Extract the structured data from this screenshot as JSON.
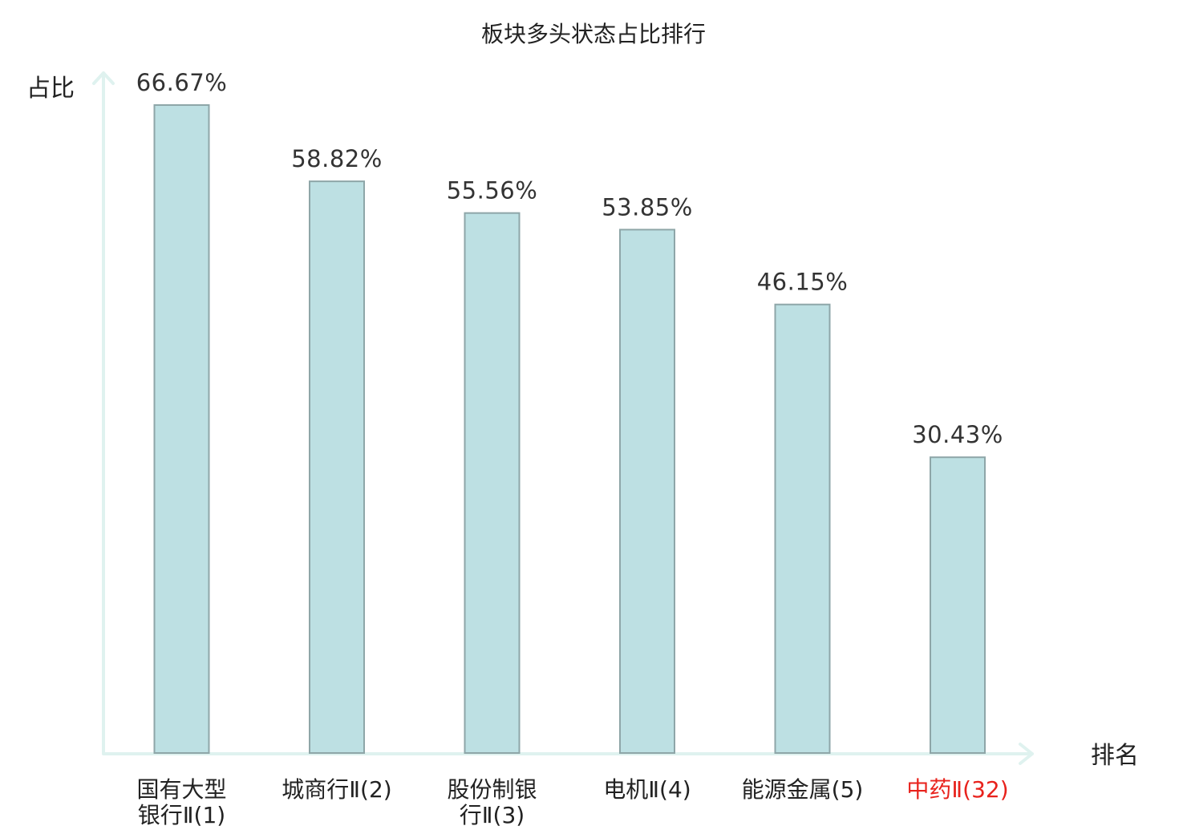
{
  "chart_data": {
    "type": "bar",
    "title": "板块多头状态占比排行",
    "xlabel": "排名",
    "ylabel": "占比",
    "categories": [
      {
        "lines": [
          "国有大型",
          "银行Ⅱ(1)"
        ],
        "highlight": false
      },
      {
        "lines": [
          "城商行Ⅱ(2)"
        ],
        "highlight": false
      },
      {
        "lines": [
          "股份制银",
          "行Ⅱ(3)"
        ],
        "highlight": false
      },
      {
        "lines": [
          "电机Ⅱ(4)"
        ],
        "highlight": false
      },
      {
        "lines": [
          "能源金属(5)"
        ],
        "highlight": false
      },
      {
        "lines": [
          "中药Ⅱ(32)"
        ],
        "highlight": true
      }
    ],
    "values": [
      66.67,
      58.82,
      55.56,
      53.85,
      46.15,
      30.43
    ],
    "value_labels": [
      "66.67%",
      "58.82%",
      "55.56%",
      "53.85%",
      "46.15%",
      "30.43%"
    ],
    "ylim": [
      0,
      66.67
    ],
    "grid": false,
    "legend": "none",
    "colors": {
      "bar_fill": "#bde0e3",
      "bar_stroke": "#8ea6a8",
      "axis": "#dff2ef",
      "label_text": "#222222",
      "highlight_text": "#e8221c"
    }
  }
}
